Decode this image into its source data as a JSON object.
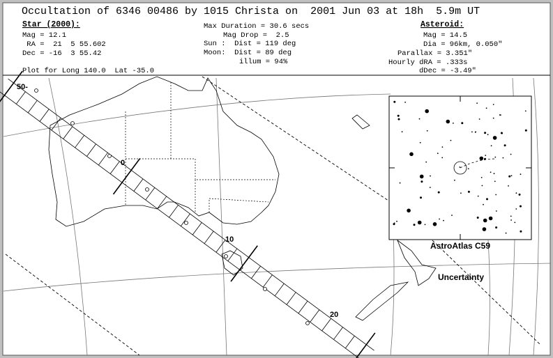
{
  "header": {
    "title": "Occultation of 6346 00486 by 1015 Christa on  2001 Jun 03 at 18h  5.9m UT",
    "star": {
      "heading": "Star (2000):",
      "lines": [
        "Mag = 12.1",
        " RA =  21  5 55.602",
        "Dec = -16  3 55.42"
      ]
    },
    "event": {
      "lines": [
        "Max Duration = 30.6 secs",
        "Mag Drop =  2.5",
        "Sun :  Dist = 119 deg",
        "Moon:  Dist = 89 deg",
        "illum = 94%"
      ]
    },
    "asteroid": {
      "heading": "Asteroid:",
      "lines": [
        "Mag = 14.5",
        "Dia = 96km, 0.050\"",
        "Parallax = 3.351\"",
        "Hourly dRA = .333s",
        "dDec = -3.49\""
      ]
    },
    "plot_note": "Plot for Long 140.0  Lat -35.0"
  },
  "map": {
    "path_labels": [
      "50-",
      "0",
      "10",
      "20"
    ],
    "inset_label": "AstroAtlas C59",
    "uncertainty_label": "Uncertainty"
  }
}
